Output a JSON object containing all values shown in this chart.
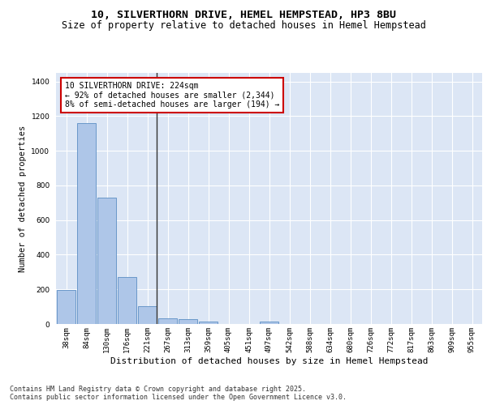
{
  "title1": "10, SILVERTHORN DRIVE, HEMEL HEMPSTEAD, HP3 8BU",
  "title2": "Size of property relative to detached houses in Hemel Hempstead",
  "xlabel": "Distribution of detached houses by size in Hemel Hempstead",
  "ylabel": "Number of detached properties",
  "categories": [
    "38sqm",
    "84sqm",
    "130sqm",
    "176sqm",
    "221sqm",
    "267sqm",
    "313sqm",
    "359sqm",
    "405sqm",
    "451sqm",
    "497sqm",
    "542sqm",
    "588sqm",
    "634sqm",
    "680sqm",
    "726sqm",
    "772sqm",
    "817sqm",
    "863sqm",
    "909sqm",
    "955sqm"
  ],
  "values": [
    197,
    1160,
    730,
    270,
    105,
    35,
    28,
    12,
    0,
    0,
    12,
    0,
    0,
    0,
    0,
    0,
    0,
    0,
    0,
    0,
    0
  ],
  "bar_color": "#aec6e8",
  "bar_edge_color": "#5b8ec4",
  "vline_color": "#333333",
  "annotation_text": "10 SILVERTHORN DRIVE: 224sqm\n← 92% of detached houses are smaller (2,344)\n8% of semi-detached houses are larger (194) →",
  "annotation_box_color": "#ffffff",
  "annotation_box_edge": "#cc0000",
  "ylim": [
    0,
    1450
  ],
  "yticks": [
    0,
    200,
    400,
    600,
    800,
    1000,
    1200,
    1400
  ],
  "fig_bg_color": "#ffffff",
  "plot_bg_color": "#dce6f5",
  "footer_text": "Contains HM Land Registry data © Crown copyright and database right 2025.\nContains public sector information licensed under the Open Government Licence v3.0.",
  "title1_fontsize": 9.5,
  "title2_fontsize": 8.5,
  "xlabel_fontsize": 8,
  "ylabel_fontsize": 7.5,
  "tick_fontsize": 6.5,
  "annotation_fontsize": 7,
  "footer_fontsize": 6
}
